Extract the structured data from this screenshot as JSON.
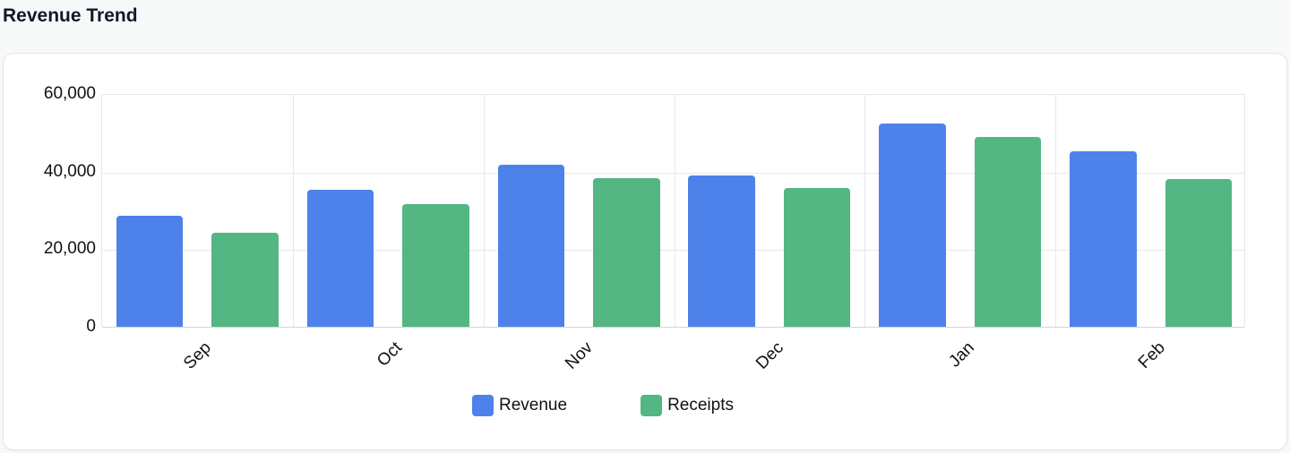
{
  "header": {
    "title": "Revenue Trend"
  },
  "chart_data": {
    "type": "bar",
    "title": "Revenue Trend",
    "xlabel": "",
    "ylabel": "",
    "categories": [
      "Sep",
      "Oct",
      "Nov",
      "Dec",
      "Jan",
      "Feb"
    ],
    "series": [
      {
        "name": "Revenue",
        "color": "#4d82eb",
        "values": [
          28600,
          35200,
          41800,
          39000,
          52300,
          45300
        ]
      },
      {
        "name": "Receipts",
        "color": "#53b683",
        "values": [
          24200,
          31600,
          38300,
          35800,
          49000,
          38100
        ]
      }
    ],
    "ylim": [
      0,
      60000
    ],
    "yticks": [
      "0",
      "20,000",
      "40,000",
      "60,000"
    ],
    "ytick_values": [
      0,
      20000,
      40000,
      60000
    ],
    "grid": true,
    "legend_position": "bottom"
  },
  "legend": {
    "items": [
      {
        "label": "Revenue",
        "color": "#4d82eb"
      },
      {
        "label": "Receipts",
        "color": "#53b683"
      }
    ]
  }
}
